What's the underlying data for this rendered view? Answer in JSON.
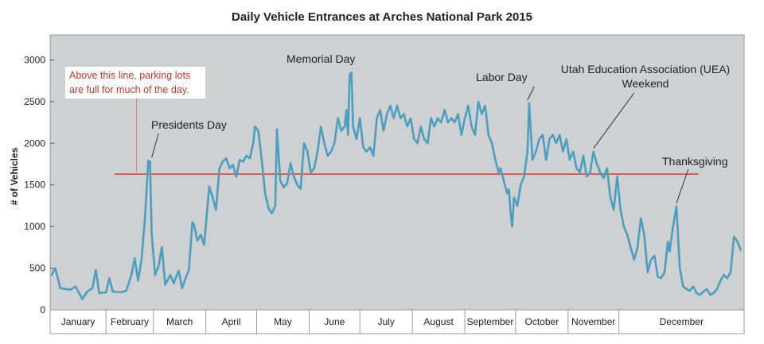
{
  "chart_data": {
    "type": "line",
    "title": "Daily Vehicle Entrances at Arches National Park 2015",
    "ylabel": "# of Vehicles",
    "xlabel": "",
    "ylim": [
      0,
      3300
    ],
    "y_ticks": [
      0,
      500,
      1000,
      1500,
      2000,
      2500,
      3000
    ],
    "grid": false,
    "months": [
      "January",
      "February",
      "March",
      "April",
      "May",
      "June",
      "July",
      "August",
      "September",
      "October",
      "November",
      "December"
    ],
    "threshold": {
      "value": 1630,
      "color": "#d93a2b"
    },
    "line_color": "#4a9fc0",
    "series_keypoints": [
      [
        1,
        420
      ],
      [
        3,
        500
      ],
      [
        6,
        260
      ],
      [
        12,
        240
      ],
      [
        15,
        280
      ],
      [
        19,
        130
      ],
      [
        22,
        220
      ],
      [
        25,
        260
      ],
      [
        27,
        480
      ],
      [
        29,
        200
      ],
      [
        33,
        210
      ],
      [
        35,
        380
      ],
      [
        37,
        220
      ],
      [
        42,
        210
      ],
      [
        45,
        230
      ],
      [
        48,
        420
      ],
      [
        50,
        620
      ],
      [
        52,
        350
      ],
      [
        54,
        600
      ],
      [
        56,
        1100
      ],
      [
        58,
        1790
      ],
      [
        59,
        1780
      ],
      [
        60,
        900
      ],
      [
        62,
        420
      ],
      [
        64,
        520
      ],
      [
        66,
        750
      ],
      [
        68,
        300
      ],
      [
        71,
        420
      ],
      [
        73,
        320
      ],
      [
        76,
        470
      ],
      [
        78,
        260
      ],
      [
        80,
        380
      ],
      [
        82,
        480
      ],
      [
        84,
        1050
      ],
      [
        85,
        1020
      ],
      [
        87,
        830
      ],
      [
        89,
        900
      ],
      [
        91,
        780
      ],
      [
        94,
        1480
      ],
      [
        96,
        1350
      ],
      [
        98,
        1200
      ],
      [
        100,
        1700
      ],
      [
        102,
        1780
      ],
      [
        104,
        1820
      ],
      [
        106,
        1700
      ],
      [
        108,
        1740
      ],
      [
        110,
        1600
      ],
      [
        112,
        1800
      ],
      [
        114,
        1780
      ],
      [
        116,
        1850
      ],
      [
        118,
        1820
      ],
      [
        120,
        2000
      ],
      [
        121,
        2200
      ],
      [
        123,
        2150
      ],
      [
        125,
        1800
      ],
      [
        127,
        1400
      ],
      [
        129,
        1220
      ],
      [
        131,
        1160
      ],
      [
        133,
        1250
      ],
      [
        134,
        2170
      ],
      [
        136,
        1550
      ],
      [
        138,
        1470
      ],
      [
        140,
        1520
      ],
      [
        142,
        1760
      ],
      [
        144,
        1600
      ],
      [
        146,
        1500
      ],
      [
        148,
        1450
      ],
      [
        150,
        2000
      ],
      [
        152,
        1900
      ],
      [
        154,
        1650
      ],
      [
        156,
        1700
      ],
      [
        158,
        1900
      ],
      [
        160,
        2200
      ],
      [
        162,
        2000
      ],
      [
        164,
        1850
      ],
      [
        166,
        1900
      ],
      [
        168,
        2000
      ],
      [
        170,
        2300
      ],
      [
        172,
        2150
      ],
      [
        174,
        2200
      ],
      [
        175,
        2400
      ],
      [
        176,
        2100
      ],
      [
        177,
        2820
      ],
      [
        178,
        2850
      ],
      [
        179,
        2200
      ],
      [
        181,
        2050
      ],
      [
        183,
        2300
      ],
      [
        185,
        1950
      ],
      [
        187,
        1900
      ],
      [
        189,
        1950
      ],
      [
        191,
        1850
      ],
      [
        193,
        2300
      ],
      [
        195,
        2400
      ],
      [
        197,
        2150
      ],
      [
        199,
        2350
      ],
      [
        201,
        2450
      ],
      [
        203,
        2300
      ],
      [
        205,
        2450
      ],
      [
        207,
        2300
      ],
      [
        209,
        2350
      ],
      [
        211,
        2200
      ],
      [
        213,
        2300
      ],
      [
        215,
        2050
      ],
      [
        217,
        2000
      ],
      [
        219,
        2200
      ],
      [
        221,
        2050
      ],
      [
        223,
        2000
      ],
      [
        225,
        2300
      ],
      [
        227,
        2200
      ],
      [
        229,
        2300
      ],
      [
        231,
        2250
      ],
      [
        233,
        2400
      ],
      [
        235,
        2250
      ],
      [
        237,
        2300
      ],
      [
        239,
        2250
      ],
      [
        241,
        2350
      ],
      [
        243,
        2100
      ],
      [
        245,
        2300
      ],
      [
        247,
        2450
      ],
      [
        249,
        2200
      ],
      [
        251,
        2100
      ],
      [
        253,
        2500
      ],
      [
        255,
        2350
      ],
      [
        257,
        2450
      ],
      [
        259,
        2100
      ],
      [
        261,
        2000
      ],
      [
        263,
        1800
      ],
      [
        265,
        1650
      ],
      [
        266,
        1700
      ],
      [
        268,
        1550
      ],
      [
        270,
        1400
      ],
      [
        271,
        1450
      ],
      [
        272,
        1180
      ],
      [
        273,
        1000
      ],
      [
        274,
        1350
      ],
      [
        276,
        1250
      ],
      [
        278,
        1500
      ],
      [
        280,
        1600
      ],
      [
        282,
        1900
      ],
      [
        283,
        2480
      ],
      [
        285,
        1800
      ],
      [
        287,
        1900
      ],
      [
        289,
        2050
      ],
      [
        291,
        2100
      ],
      [
        293,
        1800
      ],
      [
        295,
        2050
      ],
      [
        297,
        2100
      ],
      [
        299,
        2000
      ],
      [
        301,
        2100
      ],
      [
        303,
        1900
      ],
      [
        305,
        2050
      ],
      [
        307,
        1800
      ],
      [
        309,
        1900
      ],
      [
        311,
        1700
      ],
      [
        313,
        1650
      ],
      [
        315,
        1850
      ],
      [
        317,
        1600
      ],
      [
        319,
        1650
      ],
      [
        321,
        1900
      ],
      [
        323,
        1750
      ],
      [
        325,
        1650
      ],
      [
        327,
        1580
      ],
      [
        329,
        1700
      ],
      [
        331,
        1350
      ],
      [
        333,
        1200
      ],
      [
        335,
        1600
      ],
      [
        337,
        1200
      ],
      [
        339,
        1000
      ],
      [
        341,
        900
      ],
      [
        343,
        750
      ],
      [
        345,
        600
      ],
      [
        347,
        750
      ],
      [
        349,
        1100
      ],
      [
        351,
        900
      ],
      [
        353,
        450
      ],
      [
        355,
        600
      ],
      [
        357,
        650
      ],
      [
        359,
        400
      ],
      [
        361,
        380
      ],
      [
        363,
        450
      ],
      [
        365,
        820
      ]
    ],
    "december_keypoints": [
      [
        366,
        700
      ],
      [
        368,
        1000
      ],
      [
        370,
        1240
      ],
      [
        372,
        500
      ],
      [
        374,
        280
      ],
      [
        376,
        250
      ],
      [
        378,
        230
      ],
      [
        380,
        280
      ],
      [
        382,
        200
      ],
      [
        384,
        180
      ],
      [
        386,
        220
      ],
      [
        388,
        250
      ],
      [
        390,
        180
      ],
      [
        392,
        200
      ],
      [
        394,
        250
      ],
      [
        396,
        350
      ],
      [
        398,
        420
      ],
      [
        400,
        380
      ],
      [
        402,
        450
      ],
      [
        404,
        880
      ],
      [
        406,
        820
      ],
      [
        408,
        720
      ]
    ]
  },
  "annotations": {
    "parking_note": [
      "Above this line, parking lots",
      "are full for much of the day."
    ],
    "presidents_day": "Presidents Day",
    "memorial_day": "Memorial Day",
    "labor_day": "Labor Day",
    "uea": [
      "Utah Education Association (UEA)",
      "Weekend"
    ],
    "thanksgiving": "Thanksgiving"
  }
}
